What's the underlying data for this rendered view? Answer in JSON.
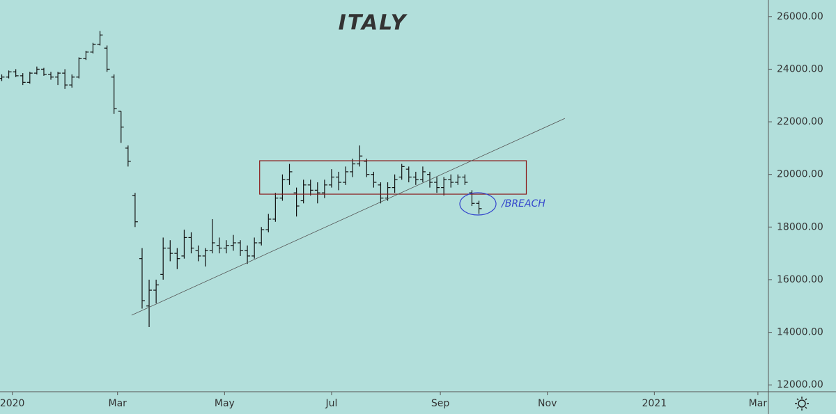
{
  "chart_data": {
    "type": "ohlc",
    "title": "ITALY",
    "title_color": "#3a3fc4",
    "color": "#111111",
    "x": [
      -6,
      -2,
      2,
      6,
      10,
      14,
      18,
      22,
      26,
      30,
      34,
      38,
      42,
      46,
      50,
      54,
      58,
      62,
      66,
      70,
      74,
      78,
      82,
      86,
      90,
      94,
      98,
      102,
      106,
      110,
      114,
      118,
      122,
      126,
      130,
      134,
      138,
      142,
      146,
      150,
      154,
      158,
      162,
      166,
      170,
      174,
      178,
      182,
      186,
      190,
      194,
      198,
      202,
      206,
      210,
      214,
      218,
      222,
      226,
      230,
      234,
      238,
      242,
      246,
      250,
      254,
      258,
      262,
      266
    ],
    "open": [
      23650,
      23700,
      23900,
      23750,
      23500,
      23850,
      24000,
      23800,
      23700,
      23850,
      23400,
      23700,
      24400,
      24650,
      24950,
      24800,
      23700,
      22400,
      21000,
      19200,
      16800,
      15000,
      15600,
      16200,
      17200,
      17000,
      16900,
      17600,
      17100,
      16900,
      17100,
      17300,
      17200,
      17300,
      17400,
      17100,
      16900,
      17400,
      17900,
      18300,
      19100,
      19800,
      19300,
      19000,
      19600,
      19400,
      19300,
      19600,
      19900,
      19700,
      20100,
      20400,
      20500,
      20000,
      19600,
      19100,
      19500,
      19900,
      20200,
      19900,
      19800,
      20000,
      19700,
      19500,
      19800,
      19700,
      19900,
      19300,
      18900
    ],
    "high": [
      23800,
      23950,
      24000,
      23850,
      23900,
      24100,
      24050,
      23900,
      23900,
      24000,
      23800,
      24450,
      24700,
      25000,
      25450,
      24900,
      23800,
      22400,
      21100,
      19300,
      17200,
      16000,
      16000,
      17600,
      17500,
      17200,
      17900,
      17800,
      17300,
      17200,
      18300,
      17600,
      17500,
      17700,
      17500,
      17300,
      17600,
      18000,
      18500,
      19300,
      20000,
      20400,
      19500,
      19800,
      19800,
      19700,
      19800,
      20200,
      20100,
      20300,
      20600,
      21100,
      20600,
      20100,
      19700,
      19700,
      20000,
      20400,
      20300,
      20100,
      20300,
      20100,
      19900,
      19900,
      20000,
      20000,
      20000,
      19400,
      19000
    ],
    "low": [
      23550,
      23650,
      23700,
      23400,
      23450,
      23800,
      23750,
      23600,
      23400,
      23250,
      23300,
      23650,
      24350,
      24600,
      24900,
      23900,
      22300,
      21200,
      20300,
      18000,
      14900,
      14200,
      15100,
      16000,
      16700,
      16400,
      16800,
      17000,
      16700,
      16500,
      17000,
      17000,
      17000,
      17100,
      16900,
      16600,
      16800,
      17300,
      17800,
      18200,
      19000,
      19600,
      18400,
      18900,
      19200,
      18900,
      19100,
      19500,
      19400,
      19600,
      19900,
      20300,
      19900,
      19500,
      18900,
      19000,
      19300,
      19800,
      19700,
      19600,
      19700,
      19500,
      19300,
      19200,
      19500,
      19600,
      19600,
      18800,
      18500
    ],
    "close": [
      23700,
      23900,
      23750,
      23500,
      23850,
      24000,
      23800,
      23700,
      23850,
      23400,
      23700,
      24400,
      24650,
      24950,
      25300,
      24000,
      22500,
      21800,
      20500,
      18200,
      15200,
      15600,
      15800,
      17200,
      17000,
      16800,
      17600,
      17200,
      16900,
      17100,
      17400,
      17200,
      17300,
      17400,
      17100,
      16900,
      17400,
      17900,
      18300,
      19100,
      19800,
      20100,
      18800,
      19600,
      19400,
      19300,
      19600,
      19900,
      19700,
      20100,
      20400,
      20700,
      20000,
      19700,
      19100,
      19500,
      19800,
      20300,
      19900,
      19800,
      20100,
      19700,
      19500,
      19800,
      19700,
      19900,
      19700,
      18900,
      18700
    ],
    "xlim": [
      -7,
      431
    ],
    "xticks": [
      {
        "value": 0,
        "label": "2020"
      },
      {
        "value": 60,
        "label": "Mar"
      },
      {
        "value": 121,
        "label": "May"
      },
      {
        "value": 182,
        "label": "Jul"
      },
      {
        "value": 244,
        "label": "Sep"
      },
      {
        "value": 305,
        "label": "Nov"
      },
      {
        "value": 366,
        "label": "2021"
      },
      {
        "value": 425,
        "label": "Mar"
      }
    ],
    "ylim": [
      11740,
      26630
    ],
    "yticks": [
      {
        "value": 12000,
        "label": "12000.00"
      },
      {
        "value": 14000,
        "label": "14000.00"
      },
      {
        "value": 16000,
        "label": "16000.00"
      },
      {
        "value": 18000,
        "label": "18000.00"
      },
      {
        "value": 20000,
        "label": "20000.00"
      },
      {
        "value": 22000,
        "label": "22000.00"
      },
      {
        "value": 24000,
        "label": "24000.00"
      },
      {
        "value": 26000,
        "label": "26000.00"
      }
    ],
    "box": {
      "x": [
        141,
        293
      ],
      "y": [
        19250,
        20520
      ],
      "color": "#8b1a1a"
    },
    "trendline": {
      "x": [
        68,
        315
      ],
      "y": [
        14650,
        22130
      ],
      "color": "#555555"
    },
    "annotation": {
      "text": "/BREACH",
      "x": 267,
      "y": 18880,
      "color": "#3344cc"
    }
  }
}
